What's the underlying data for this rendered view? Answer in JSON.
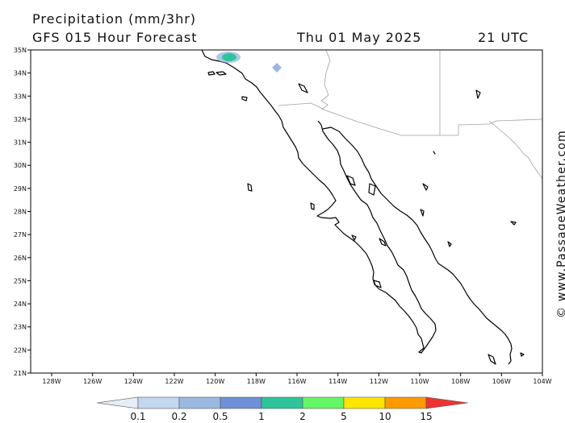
{
  "header": {
    "title": "Precipitation (mm/3hr)",
    "model": "GFS 015 Hour Forecast",
    "date": "Thu 01 May 2025",
    "time": "21 UTC"
  },
  "copyright": "© www.PassageWeather.com",
  "axes": {
    "lat_labels": [
      "35N",
      "34N",
      "33N",
      "32N",
      "31N",
      "30N",
      "29N",
      "28N",
      "27N",
      "26N",
      "25N",
      "24N",
      "23N",
      "22N",
      "21N"
    ],
    "lon_labels": [
      "128W",
      "126W",
      "124W",
      "122W",
      "120W",
      "118W",
      "116W",
      "114W",
      "112W",
      "110W",
      "108W",
      "106W",
      "104W"
    ]
  },
  "colorbar": {
    "labels": [
      "0.1",
      "0.2",
      "0.5",
      "1",
      "2",
      "5",
      "10",
      "15"
    ],
    "colors": [
      "#e6eef8",
      "#c3d7ee",
      "#9bb9e0",
      "#6f8fd6",
      "#2fc49a",
      "#66f566",
      "#ffe600",
      "#ff9900",
      "#ee3333"
    ]
  },
  "map": {
    "coastline_color": "#000000",
    "border_color": "#a0a0a0",
    "precip_colors": {
      "light": "#9bb9e0",
      "medium": "#2fc49a"
    }
  }
}
